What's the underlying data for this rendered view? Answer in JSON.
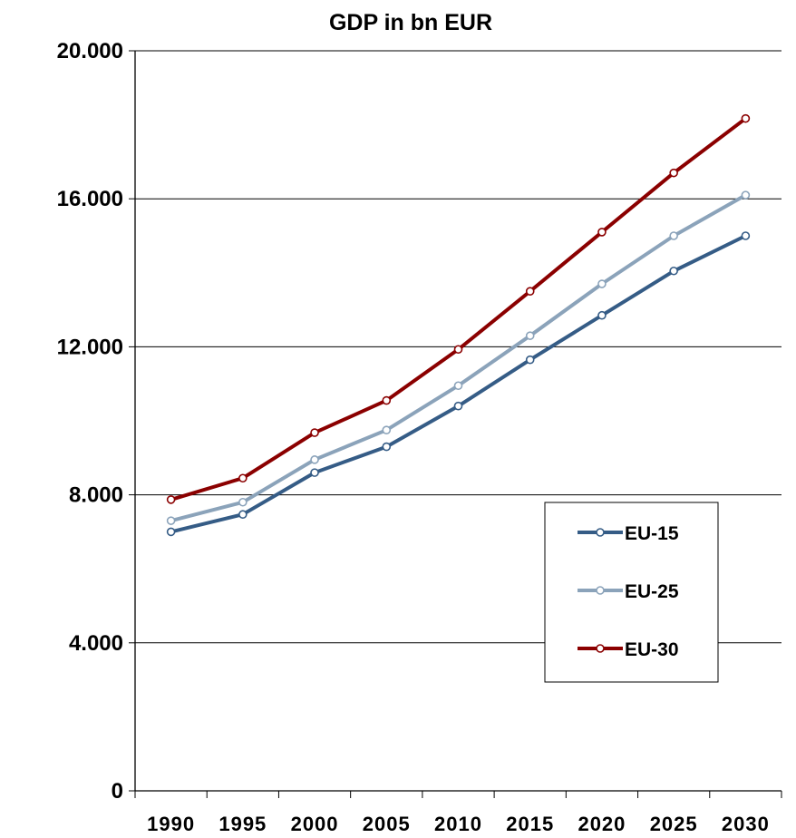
{
  "chart_data": {
    "type": "line",
    "title": "GDP in bn EUR",
    "xlabel": "",
    "ylabel": "",
    "categories": [
      "1990",
      "1995",
      "2000",
      "2005",
      "2010",
      "2015",
      "2020",
      "2025",
      "2030"
    ],
    "y_ticks": [
      "0",
      "4.000",
      "8.000",
      "12.000",
      "16.000",
      "20.000"
    ],
    "ylim": [
      0,
      20000
    ],
    "grid": true,
    "legend_position": "right",
    "series": [
      {
        "name": "EU-15",
        "color": "#355c86",
        "values": [
          7000,
          7470,
          8600,
          9300,
          10400,
          11650,
          12850,
          14050,
          15000
        ]
      },
      {
        "name": "EU-25",
        "color": "#8ba3ba",
        "values": [
          7300,
          7800,
          8950,
          9750,
          10950,
          12300,
          13700,
          15000,
          16100
        ]
      },
      {
        "name": "EU-30",
        "color": "#8b0000",
        "values": [
          7870,
          8450,
          9680,
          10550,
          11930,
          13500,
          15100,
          16700,
          18170
        ]
      }
    ]
  }
}
